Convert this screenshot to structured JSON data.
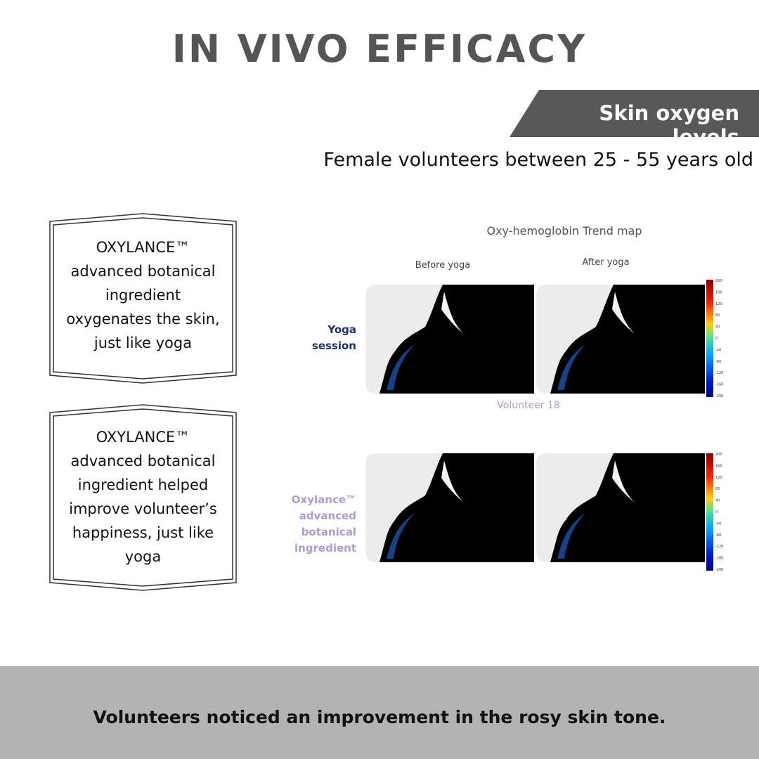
{
  "header": {
    "title": "IN VIVO EFFICACY",
    "tag": "Skin oxygen levels",
    "subtitle": "Female volunteers between 25 - 55 years old"
  },
  "boxes": [
    {
      "lines": [
        "OXYLANCE™",
        "advanced botanical",
        "ingredient",
        "oxygenates the skin,",
        "just like yoga"
      ]
    },
    {
      "lines": [
        "OXYLANCE™",
        "advanced botanical",
        "ingredient helped",
        "improve volunteer’s",
        "happiness, just like",
        "yoga"
      ]
    }
  ],
  "figure": {
    "title": "Oxy-hemoglobin Trend map",
    "columns": [
      "Before yoga",
      "After yoga"
    ],
    "rows": [
      {
        "label": [
          "Yoga",
          "session"
        ],
        "caption": "Volunteer 18"
      },
      {
        "label": [
          "Oxylance™",
          "advanced",
          "botanical",
          "ingredient"
        ]
      }
    ],
    "scale": [
      "200",
      "160",
      "120",
      "80",
      "40",
      "0",
      "-40",
      "-80",
      "-120",
      "-160",
      "-200"
    ]
  },
  "footer": {
    "text": "Volunteers noticed an improvement in the rosy skin tone."
  }
}
